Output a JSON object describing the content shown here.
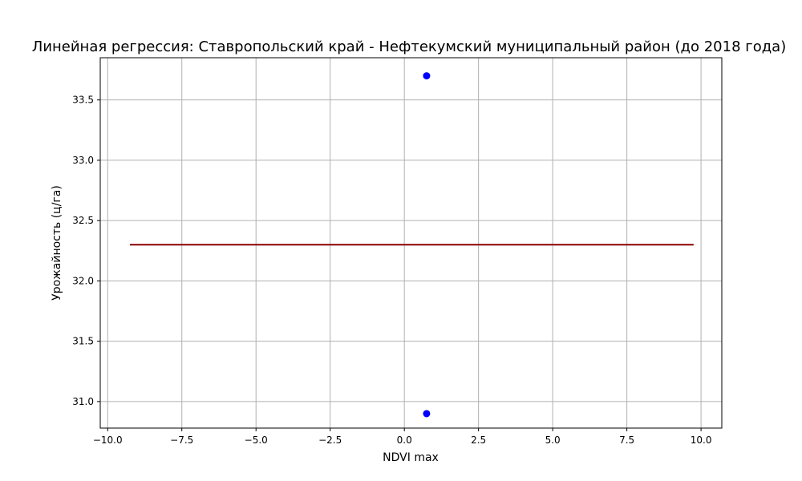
{
  "chart_data": {
    "type": "scatter",
    "title": "Линейная регрессия: Ставропольский край - Нефтекумский муниципальный район (до 2018 года)",
    "xlabel": "NDVI max",
    "ylabel": "Урожайность (ц/га)",
    "xlim": [
      -10.25,
      10.7
    ],
    "ylim": [
      30.78,
      33.85
    ],
    "xticks": [
      -10.0,
      -7.5,
      -5.0,
      -2.5,
      0.0,
      2.5,
      5.0,
      7.5,
      10.0
    ],
    "xtick_labels": [
      "−10.0",
      "−7.5",
      "−5.0",
      "−2.5",
      "0.0",
      "2.5",
      "5.0",
      "7.5",
      "10.0"
    ],
    "yticks": [
      31.0,
      31.5,
      32.0,
      32.5,
      33.0,
      33.5
    ],
    "ytick_labels": [
      "31.0",
      "31.5",
      "32.0",
      "32.5",
      "33.0",
      "33.5"
    ],
    "grid": true,
    "points": [
      {
        "x": 0.75,
        "y": 33.7
      },
      {
        "x": 0.75,
        "y": 30.9
      }
    ],
    "regression_line": {
      "x": [
        -9.25,
        9.75
      ],
      "y": [
        32.3,
        32.3
      ]
    },
    "colors": {
      "points": "#0000ff",
      "line": "#8b0000",
      "grid": "#b0b0b0"
    }
  }
}
